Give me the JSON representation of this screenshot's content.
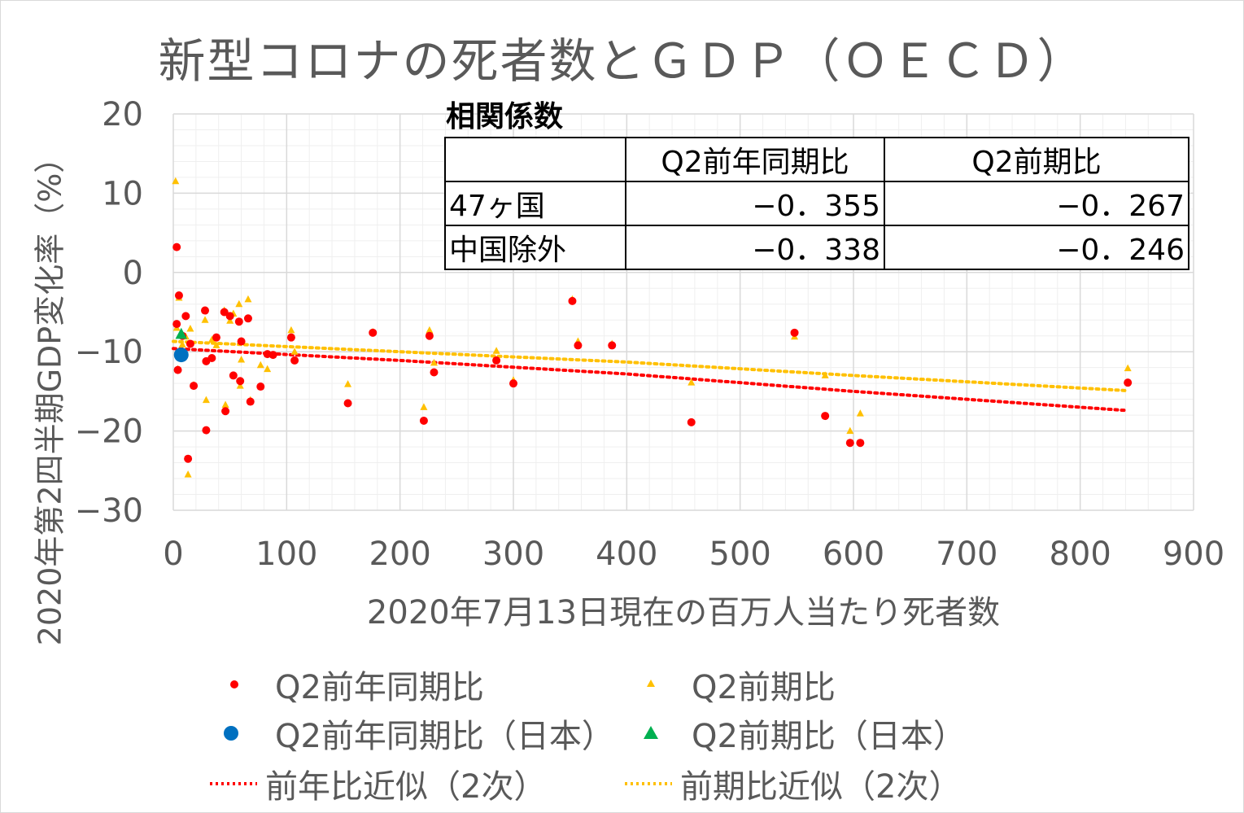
{
  "title": "新型コロナの死者数とＧＤＰ（ＯＥＣＤ）",
  "colors": {
    "yoy": "#ff0000",
    "qoq": "#ffc000",
    "japan_yoy": "#0070c0",
    "japan_qoq": "#00b050",
    "grid": "#d9d9d9",
    "text": "#595959"
  },
  "correlation": {
    "title": "相関係数",
    "headers": [
      "",
      "Q2前年同期比",
      "Q2前期比"
    ],
    "rows": [
      {
        "label": "47ヶ国",
        "yoy": "−0．355",
        "qoq": "−0．267"
      },
      {
        "label": "中国除外",
        "yoy": "−0．338",
        "qoq": "−0．246"
      }
    ]
  },
  "legend": [
    {
      "key": "yoy",
      "label": "Q2前年同期比",
      "symbol": "circle-small"
    },
    {
      "key": "qoq",
      "label": "Q2前期比",
      "symbol": "triangle-small"
    },
    {
      "key": "japan_yoy",
      "label": "Q2前年同期比（日本）",
      "symbol": "circle-large"
    },
    {
      "key": "japan_qoq",
      "label": "Q2前期比（日本）",
      "symbol": "triangle-large"
    },
    {
      "key": "yoy_trend",
      "label": "前年比近似（2次）",
      "symbol": "dotted-red"
    },
    {
      "key": "qoq_trend",
      "label": "前期比近似（2次）",
      "symbol": "dotted-yellow"
    }
  ],
  "chart_data": {
    "type": "scatter",
    "title": "新型コロナの死者数とＧＤＰ（ＯＥＣＤ）",
    "xlabel": "2020年7月13日現在の百万人当たり死者数",
    "ylabel": "2020年第2四半期GDP変化率（%）",
    "xlim": [
      0,
      900
    ],
    "ylim": [
      -30,
      20
    ],
    "x_ticks": [
      "0",
      "100",
      "200",
      "300",
      "400",
      "500",
      "600",
      "700",
      "800",
      "900"
    ],
    "y_ticks": [
      "20",
      "10",
      "0",
      "−10",
      "−20",
      "−30"
    ],
    "grid": true,
    "series": [
      {
        "name": "Q2前年同期比",
        "marker": "circle",
        "points": [
          [
            3,
            3.2
          ],
          [
            3,
            -6.5
          ],
          [
            4,
            -12.3
          ],
          [
            5,
            -2.9
          ],
          [
            8,
            -8.0
          ],
          [
            11,
            -5.5
          ],
          [
            13,
            -23.5
          ],
          [
            15,
            -9.0
          ],
          [
            18,
            -14.3
          ],
          [
            28,
            -4.8
          ],
          [
            29,
            -11.2
          ],
          [
            29,
            -19.9
          ],
          [
            34,
            -10.8
          ],
          [
            38,
            -8.2
          ],
          [
            45,
            -5.0
          ],
          [
            46,
            -17.5
          ],
          [
            50,
            -5.5
          ],
          [
            53,
            -13.0
          ],
          [
            58,
            -6.2
          ],
          [
            59,
            -13.7
          ],
          [
            60,
            -8.7
          ],
          [
            66,
            -5.8
          ],
          [
            68,
            -16.3
          ],
          [
            77,
            -14.4
          ],
          [
            83,
            -10.3
          ],
          [
            88,
            -10.4
          ],
          [
            104,
            -8.2
          ],
          [
            107,
            -11.1
          ],
          [
            154,
            -16.5
          ],
          [
            176,
            -7.6
          ],
          [
            221,
            -18.7
          ],
          [
            226,
            -8.0
          ],
          [
            230,
            -12.6
          ],
          [
            285,
            -11.1
          ],
          [
            300,
            -14.0
          ],
          [
            352,
            -3.6
          ],
          [
            357,
            -9.2
          ],
          [
            387,
            -9.2
          ],
          [
            457,
            -18.9
          ],
          [
            548,
            -7.6
          ],
          [
            575,
            -18.1
          ],
          [
            597,
            -21.5
          ],
          [
            606,
            -21.5
          ],
          [
            842,
            -13.9
          ]
        ]
      },
      {
        "name": "Q2前期比",
        "marker": "triangle",
        "points": [
          [
            2,
            11.5
          ],
          [
            3,
            -7.0
          ],
          [
            4,
            -12.2
          ],
          [
            5,
            -3.2
          ],
          [
            8,
            -9.1
          ],
          [
            11,
            -8.1
          ],
          [
            13,
            -25.5
          ],
          [
            15,
            -7.1
          ],
          [
            18,
            -14.2
          ],
          [
            28,
            -6.0
          ],
          [
            29,
            -16.1
          ],
          [
            34,
            -8.5
          ],
          [
            38,
            -9.2
          ],
          [
            45,
            -4.8
          ],
          [
            46,
            -16.7
          ],
          [
            50,
            -6.1
          ],
          [
            53,
            -5.2
          ],
          [
            58,
            -4.0
          ],
          [
            59,
            -14.3
          ],
          [
            60,
            -11.0
          ],
          [
            66,
            -3.4
          ],
          [
            68,
            -16.1
          ],
          [
            77,
            -11.7
          ],
          [
            83,
            -12.2
          ],
          [
            104,
            -7.3
          ],
          [
            107,
            -10.0
          ],
          [
            154,
            -14.1
          ],
          [
            176,
            -7.5
          ],
          [
            221,
            -17.0
          ],
          [
            226,
            -7.3
          ],
          [
            230,
            -11.4
          ],
          [
            285,
            -9.9
          ],
          [
            300,
            -13.6
          ],
          [
            352,
            -3.4
          ],
          [
            357,
            -8.7
          ],
          [
            387,
            -9.0
          ],
          [
            457,
            -13.9
          ],
          [
            548,
            -8.1
          ],
          [
            575,
            -13.0
          ],
          [
            597,
            -20.0
          ],
          [
            606,
            -17.8
          ],
          [
            842,
            -12.1
          ]
        ]
      },
      {
        "name": "Q2前年同期比（日本）",
        "marker": "circle-large",
        "points": [
          [
            7,
            -10.4
          ]
        ]
      },
      {
        "name": "Q2前期比（日本）",
        "marker": "triangle-large",
        "points": [
          [
            7,
            -7.8
          ]
        ]
      },
      {
        "name": "前年比近似（2次）",
        "marker": "trend",
        "points": [
          [
            0,
            -9.6
          ],
          [
            200,
            -11.1
          ],
          [
            400,
            -12.8
          ],
          [
            600,
            -15.0
          ],
          [
            840,
            -17.4
          ]
        ]
      },
      {
        "name": "前期比近似（2次）",
        "marker": "trend",
        "points": [
          [
            0,
            -8.7
          ],
          [
            200,
            -10.0
          ],
          [
            400,
            -11.3
          ],
          [
            600,
            -13.0
          ],
          [
            840,
            -14.9
          ]
        ]
      }
    ]
  }
}
